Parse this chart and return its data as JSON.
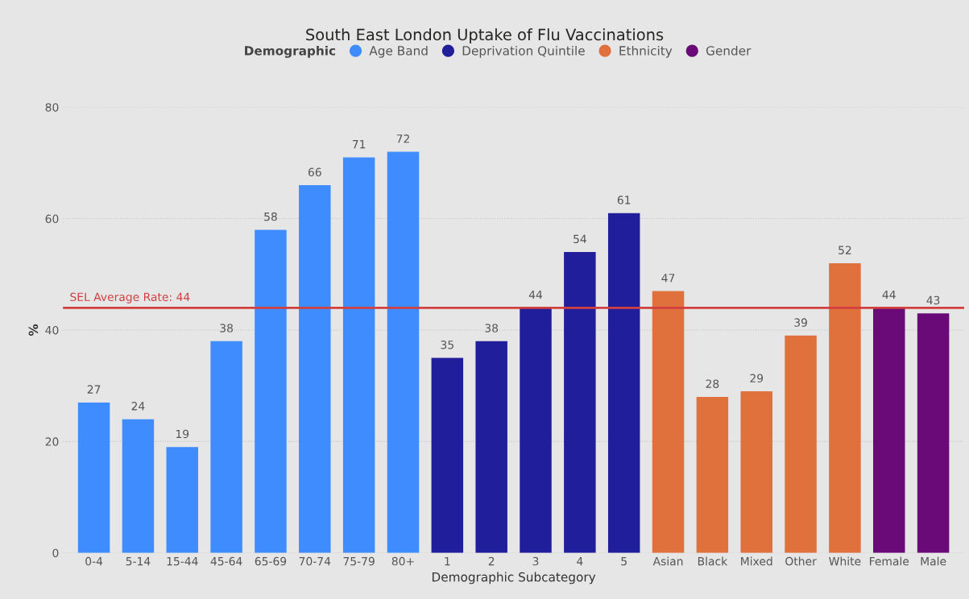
{
  "chart_data": {
    "type": "bar",
    "title": "South East London Uptake of Flu Vaccinations",
    "xlabel": "Demographic Subcategory",
    "ylabel": "%",
    "legend_title": "Demographic",
    "categories": [
      "0-4",
      "5-14",
      "15-44",
      "45-64",
      "65-69",
      "70-74",
      "75-79",
      "80+",
      "1",
      "2",
      "3",
      "4",
      "5",
      "Asian",
      "Black",
      "Mixed",
      "Other",
      "White",
      "Female",
      "Male"
    ],
    "series": [
      {
        "name": "Age Band",
        "color": "#3f8cff",
        "values": [
          27,
          24,
          19,
          38,
          58,
          66,
          71,
          72,
          null,
          null,
          null,
          null,
          null,
          null,
          null,
          null,
          null,
          null,
          null,
          null
        ]
      },
      {
        "name": "Deprivation Quintile",
        "color": "#201e9a",
        "values": [
          null,
          null,
          null,
          null,
          null,
          null,
          null,
          null,
          35,
          38,
          44,
          54,
          61,
          null,
          null,
          null,
          null,
          null,
          null,
          null
        ]
      },
      {
        "name": "Ethnicity",
        "color": "#e0703c",
        "values": [
          null,
          null,
          null,
          null,
          null,
          null,
          null,
          null,
          null,
          null,
          null,
          null,
          null,
          47,
          28,
          29,
          39,
          52,
          null,
          null
        ]
      },
      {
        "name": "Gender",
        "color": "#6a0a78",
        "values": [
          null,
          null,
          null,
          null,
          null,
          null,
          null,
          null,
          null,
          null,
          null,
          null,
          null,
          null,
          null,
          null,
          null,
          null,
          44,
          43
        ]
      }
    ],
    "ylim": [
      0,
      80
    ],
    "yticks": [
      0,
      20,
      40,
      60,
      80
    ],
    "ref_lines": [
      {
        "axis": "y",
        "value": 44,
        "label": "SEL Average Rate: 44",
        "color": "#d13f3f"
      }
    ],
    "data_labels": true,
    "grid": "y",
    "legend": "top"
  }
}
